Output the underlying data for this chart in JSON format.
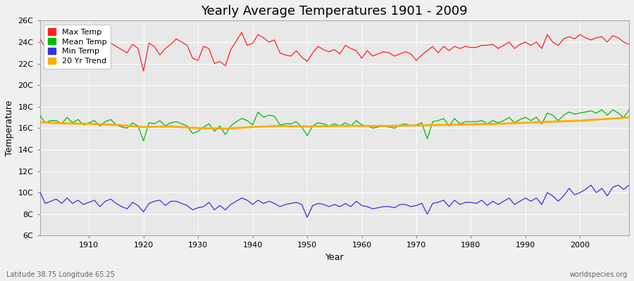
{
  "title": "Yearly Average Temperatures 1901 - 2009",
  "xlabel": "Year",
  "ylabel": "Temperature",
  "subtitle_left": "Latitude 38.75 Longitude 65.25",
  "subtitle_right": "worldspecies.org",
  "years": [
    1901,
    1902,
    1903,
    1904,
    1905,
    1906,
    1907,
    1908,
    1909,
    1910,
    1911,
    1912,
    1913,
    1914,
    1915,
    1916,
    1917,
    1918,
    1919,
    1920,
    1921,
    1922,
    1923,
    1924,
    1925,
    1926,
    1927,
    1928,
    1929,
    1930,
    1931,
    1932,
    1933,
    1934,
    1935,
    1936,
    1937,
    1938,
    1939,
    1940,
    1941,
    1942,
    1943,
    1944,
    1945,
    1946,
    1947,
    1948,
    1949,
    1950,
    1951,
    1952,
    1953,
    1954,
    1955,
    1956,
    1957,
    1958,
    1959,
    1960,
    1961,
    1962,
    1963,
    1964,
    1965,
    1966,
    1967,
    1968,
    1969,
    1970,
    1971,
    1972,
    1973,
    1974,
    1975,
    1976,
    1977,
    1978,
    1979,
    1980,
    1981,
    1982,
    1983,
    1984,
    1985,
    1986,
    1987,
    1988,
    1989,
    1990,
    1991,
    1992,
    1993,
    1994,
    1995,
    1996,
    1997,
    1998,
    1999,
    2000,
    2001,
    2002,
    2003,
    2004,
    2005,
    2006,
    2007,
    2008,
    2009
  ],
  "max_temp": [
    24.3,
    23.5,
    24.1,
    23.8,
    23.4,
    23.7,
    23.2,
    24.0,
    23.6,
    23.9,
    24.1,
    23.5,
    23.8,
    23.9,
    23.6,
    23.3,
    23.0,
    23.8,
    23.4,
    21.3,
    23.9,
    23.6,
    22.8,
    23.4,
    23.8,
    24.3,
    24.0,
    23.7,
    22.5,
    22.3,
    23.6,
    23.4,
    22.0,
    22.2,
    21.8,
    23.3,
    24.1,
    24.9,
    23.7,
    23.9,
    24.7,
    24.4,
    24.0,
    24.2,
    23.0,
    22.8,
    22.7,
    23.2,
    22.6,
    22.2,
    23.0,
    23.6,
    23.3,
    23.1,
    23.3,
    22.9,
    23.7,
    23.4,
    23.2,
    22.5,
    23.2,
    22.7,
    22.9,
    23.1,
    23.0,
    22.7,
    22.9,
    23.1,
    22.9,
    22.3,
    22.8,
    23.2,
    23.6,
    23.0,
    23.6,
    23.2,
    23.6,
    23.4,
    23.6,
    23.5,
    23.5,
    23.7,
    23.7,
    23.8,
    23.4,
    23.7,
    24.0,
    23.4,
    23.8,
    24.0,
    23.7,
    24.0,
    23.4,
    24.7,
    24.0,
    23.7,
    24.3,
    24.5,
    24.3,
    24.7,
    24.4,
    24.2,
    24.4,
    24.5,
    24.0,
    24.6,
    24.4,
    24.0,
    23.8
  ],
  "mean_temp": [
    17.2,
    16.5,
    16.7,
    16.7,
    16.4,
    17.0,
    16.5,
    16.8,
    16.3,
    16.5,
    16.7,
    16.2,
    16.6,
    16.8,
    16.3,
    16.1,
    16.0,
    16.5,
    16.2,
    14.8,
    16.5,
    16.4,
    16.7,
    16.2,
    16.5,
    16.6,
    16.4,
    16.2,
    15.5,
    15.7,
    16.1,
    16.4,
    15.7,
    16.2,
    15.4,
    16.2,
    16.6,
    16.9,
    16.7,
    16.3,
    17.5,
    17.0,
    17.2,
    17.1,
    16.3,
    16.4,
    16.4,
    16.6,
    16.1,
    15.3,
    16.2,
    16.5,
    16.4,
    16.2,
    16.4,
    16.2,
    16.5,
    16.2,
    16.7,
    16.3,
    16.2,
    16.0,
    16.1,
    16.2,
    16.1,
    16.0,
    16.3,
    16.4,
    16.2,
    16.3,
    16.5,
    15.0,
    16.6,
    16.7,
    16.9,
    16.2,
    16.9,
    16.4,
    16.6,
    16.6,
    16.6,
    16.7,
    16.4,
    16.7,
    16.5,
    16.7,
    17.0,
    16.5,
    16.8,
    17.0,
    16.7,
    17.0,
    16.4,
    17.4,
    17.2,
    16.7,
    17.2,
    17.5,
    17.3,
    17.4,
    17.5,
    17.6,
    17.4,
    17.7,
    17.2,
    17.7,
    17.4,
    17.0,
    17.7
  ],
  "min_temp": [
    10.1,
    9.0,
    9.2,
    9.4,
    9.0,
    9.5,
    9.0,
    9.3,
    8.9,
    9.1,
    9.3,
    8.7,
    9.2,
    9.4,
    9.0,
    8.7,
    8.5,
    9.1,
    8.8,
    8.2,
    9.0,
    9.2,
    9.3,
    8.8,
    9.2,
    9.2,
    9.0,
    8.8,
    8.4,
    8.6,
    8.7,
    9.1,
    8.4,
    8.8,
    8.4,
    8.9,
    9.2,
    9.5,
    9.3,
    8.9,
    9.3,
    9.0,
    9.2,
    9.0,
    8.7,
    8.9,
    9.0,
    9.1,
    8.9,
    7.7,
    8.8,
    9.0,
    8.9,
    8.7,
    8.9,
    8.7,
    9.0,
    8.7,
    9.2,
    8.8,
    8.7,
    8.5,
    8.6,
    8.7,
    8.7,
    8.6,
    8.9,
    8.9,
    8.7,
    8.8,
    9.0,
    8.0,
    9.0,
    9.1,
    9.3,
    8.7,
    9.3,
    8.9,
    9.1,
    9.1,
    9.0,
    9.3,
    8.8,
    9.2,
    8.9,
    9.2,
    9.5,
    8.9,
    9.2,
    9.5,
    9.2,
    9.5,
    8.9,
    10.0,
    9.7,
    9.2,
    9.7,
    10.4,
    9.8,
    10.0,
    10.3,
    10.7,
    10.0,
    10.4,
    9.7,
    10.5,
    10.7,
    10.3,
    10.7
  ],
  "trend_years": [
    1901,
    1905,
    1910,
    1915,
    1920,
    1925,
    1930,
    1935,
    1940,
    1945,
    1950,
    1955,
    1960,
    1965,
    1970,
    1975,
    1980,
    1985,
    1990,
    1995,
    2000,
    2005,
    2009
  ],
  "trend_values": [
    16.55,
    16.45,
    16.4,
    16.3,
    16.1,
    16.15,
    16.0,
    15.95,
    16.1,
    16.2,
    16.15,
    16.2,
    16.2,
    16.2,
    16.25,
    16.3,
    16.35,
    16.4,
    16.5,
    16.6,
    16.7,
    16.85,
    17.0
  ],
  "colors": {
    "max": "#ff2020",
    "mean": "#00bb00",
    "min": "#3333dd",
    "trend": "#ffaa00",
    "fig_bg": "#f0f0f0",
    "plot_bg": "#e8e8e8",
    "grid": "#ffffff"
  },
  "ylim": [
    6,
    26
  ],
  "yticks": [
    6,
    8,
    10,
    12,
    14,
    16,
    18,
    20,
    22,
    24,
    26
  ],
  "ytick_labels": [
    "6C",
    "8C",
    "10C",
    "12C",
    "14C",
    "16C",
    "18C",
    "20C",
    "22C",
    "24C",
    "26C"
  ],
  "xlim": [
    1901,
    2009
  ],
  "xticks": [
    1910,
    1920,
    1930,
    1940,
    1950,
    1960,
    1970,
    1980,
    1990,
    2000
  ],
  "legend_labels": [
    "Max Temp",
    "Mean Temp",
    "Min Temp",
    "20 Yr Trend"
  ],
  "legend_colors": [
    "#ff2020",
    "#00bb00",
    "#3333dd",
    "#ffaa00"
  ]
}
